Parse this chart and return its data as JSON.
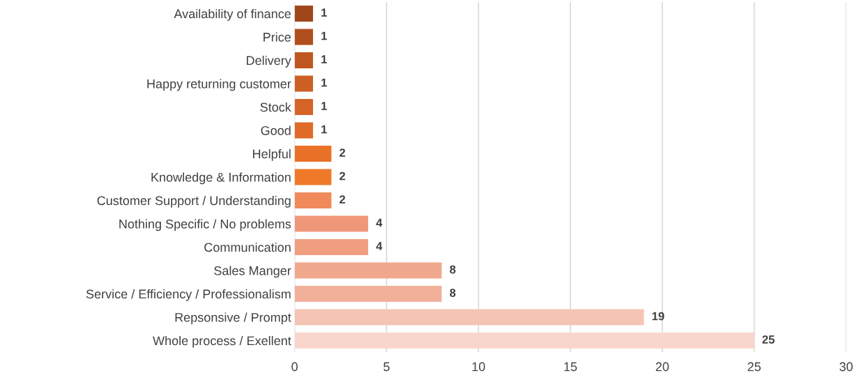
{
  "chart_data": {
    "type": "bar",
    "orientation": "horizontal",
    "categories": [
      "Availability of finance",
      "Price",
      "Delivery",
      "Happy returning customer",
      "Stock",
      "Good",
      "Helpful",
      "Knowledge & Information",
      "Customer Support / Understanding",
      "Nothing Specific / No problems",
      "Communication",
      "Sales Manger",
      "Service / Efficiency / Professionalism",
      "Repsonsive / Prompt",
      "Whole process / Exellent"
    ],
    "values": [
      1,
      1,
      1,
      1,
      1,
      1,
      2,
      2,
      2,
      4,
      4,
      8,
      8,
      19,
      25
    ],
    "colors": [
      "#a0461c",
      "#b04e1e",
      "#c0561f",
      "#cc5f24",
      "#d66326",
      "#e06a28",
      "#ea7228",
      "#f07a2a",
      "#f08a5a",
      "#f0977a",
      "#f09e80",
      "#f0a88c",
      "#f2b09a",
      "#f5c4b4",
      "#f8d6cc"
    ],
    "xlim": [
      0,
      30
    ],
    "xticks": [
      0,
      5,
      10,
      15,
      20,
      25,
      30
    ],
    "grid": "x",
    "data_labels": true
  }
}
